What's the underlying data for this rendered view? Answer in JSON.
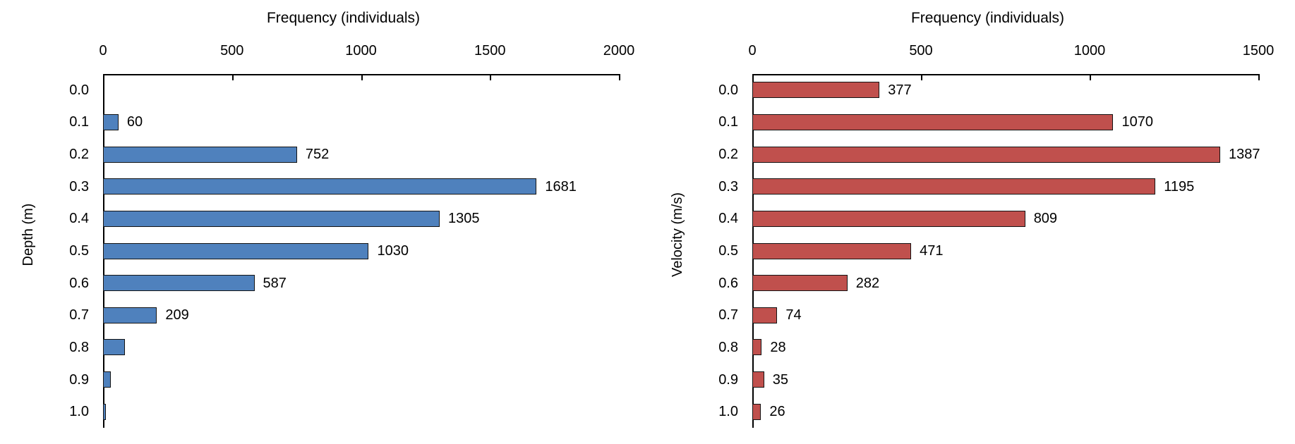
{
  "figure": {
    "background": "#ffffff",
    "text_color": "#000000",
    "axis_color": "#000000"
  },
  "chart_data": [
    {
      "type": "bar",
      "orientation": "horizontal",
      "title": "Frequency (individuals)",
      "xlabel": "Frequency (individuals)",
      "ylabel": "Depth (m)",
      "categories": [
        "0.0",
        "0.1",
        "0.2",
        "0.3",
        "0.4",
        "0.5",
        "0.6",
        "0.7",
        "0.8",
        "0.9",
        "1.0"
      ],
      "values": [
        0,
        60,
        752,
        1681,
        1305,
        1030,
        587,
        209,
        85,
        30,
        11
      ],
      "bar_labels": [
        "",
        "60",
        "752",
        "1681",
        "1305",
        "1030",
        "587",
        "209",
        "",
        "",
        ""
      ],
      "xlim": [
        0,
        2000
      ],
      "x_ticks": [
        0,
        500,
        1000,
        1500,
        2000
      ],
      "bar_color": "#4f81bd",
      "bar_border_color": "#141414",
      "grid": false,
      "legend": false
    },
    {
      "type": "bar",
      "orientation": "horizontal",
      "title": "Frequency (individuals)",
      "xlabel": "Frequency (individuals)",
      "ylabel": "Velocity (m/s)",
      "categories": [
        "0.0",
        "0.1",
        "0.2",
        "0.3",
        "0.4",
        "0.5",
        "0.6",
        "0.7",
        "0.8",
        "0.9",
        "1.0"
      ],
      "values": [
        377,
        1070,
        1387,
        1195,
        809,
        471,
        282,
        74,
        28,
        35,
        26
      ],
      "bar_labels": [
        "377",
        "1070",
        "1387",
        "1195",
        "809",
        "471",
        "282",
        "74",
        "28",
        "35",
        "26"
      ],
      "xlim": [
        0,
        1500
      ],
      "x_ticks": [
        0,
        500,
        1000,
        1500
      ],
      "bar_color": "#c0504d",
      "bar_border_color": "#141414",
      "grid": false,
      "legend": false
    }
  ]
}
